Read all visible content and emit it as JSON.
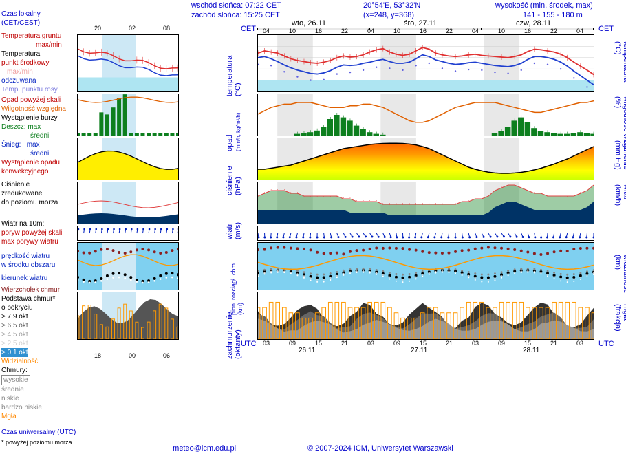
{
  "header": {
    "sunrise": "wschód słońca: 07:22 CET",
    "sunset": "zachód słońca: 15:25 CET",
    "coords": "20°54'E, 53°32'N",
    "xy": "(x=248, y=368)",
    "elevation_label": "wysokość (min, środek, max)",
    "elevation": "141 - 155 - 180 m"
  },
  "legend": {
    "czas_lokalny": "Czas lokalny",
    "czas_lokalny_sub": "(CET/CEST)",
    "temp_gruntu": "Temperatura gruntu",
    "maxmin": "max/min",
    "temperatura": "Temperatura:",
    "punkt_srodkowy": "punkt środkowy",
    "maxmin2": "max/min",
    "odczuwana": "odczuwana",
    "temp_rosy": "Temp. punktu rosy",
    "opad_skali": "Opad powyżej skali",
    "wilg_wzgl": "Wilgotność względna",
    "burza": "Wystąpienie burzy",
    "deszcz": "Deszcz:",
    "max": "max",
    "sredni": "średni",
    "snieg": "Śnieg:",
    "opad_konw": "Wystąpienie opadu",
    "opad_konw2": "konwekcyjnego",
    "cisnienie": "Ciśnienie",
    "zredukowane": "zredukowane",
    "do_poziomu": "do poziomu morza",
    "wiatr10m": "Wiatr na 10m:",
    "poryw_skali": "poryw powyżej skali",
    "max_porywy": "max porywy wiatru",
    "predkosc": "prędkość wiatru",
    "srodek_obszaru": "w środku obszaru",
    "kierunek": "kierunek wiatru",
    "wierzch_chmur": "Wierzchołek chmur",
    "podstawa": "Podstawa chmur*",
    "pokrycie": "o pokryciu",
    "okt79": "> 7.9 okt",
    "okt65": "> 6.5 okt",
    "okt45": "> 4.5 okt",
    "okt25": "> 2.5 okt",
    "okt01": "> 0.1 okt",
    "widzialnosc": "Widzialność",
    "chmury": "Chmury:",
    "wysokie": "wysokie",
    "srednie": "średnie",
    "niskie": "niskie",
    "bardzo_niskie": "bardzo niskie",
    "mgla": "Mgła",
    "czas_utc": "Czas uniwersalny (UTC)",
    "asterisk": "* powyżej poziomu morza"
  },
  "xaxis": {
    "cet": "CET",
    "utc": "UTC",
    "days": [
      "wto, 26.11",
      "śro, 27.11",
      "czw, 28.11"
    ],
    "hours_top": [
      "04",
      "10",
      "16",
      "22",
      "04",
      "10",
      "16",
      "22",
      "04",
      "10",
      "16",
      "22",
      "04"
    ],
    "hours_bot": [
      "03",
      "09",
      "15",
      "21",
      "03",
      "09",
      "15",
      "21",
      "03",
      "09",
      "15",
      "21",
      "03"
    ],
    "dates_bot": [
      "26.11",
      "27.11",
      "28.11"
    ],
    "mini_top": [
      "20",
      "02",
      "08"
    ],
    "mini_bot": [
      "18",
      "00",
      "06"
    ]
  },
  "vlabels": {
    "temp": "temperatura",
    "temp_unit": "(°C)",
    "opad": "opad",
    "opad_unit": "(mm/h, kg/m²/h)",
    "cisnienie": "ciśnienie",
    "cisnienie_unit": "(hPa)",
    "wiatr": "wiatr",
    "wiatr_unit": "(m/s)",
    "chmur": "pion. rozciągł. chm.",
    "chmur_unit": "(km)",
    "zachmurzenie": "zachmurzenie",
    "zachmurzenie_unit": "(oktanty)",
    "wilg": "wilgotność wzgl.",
    "wilg_unit": "(%)",
    "cisn_r": "ciśnienie",
    "cisn_r_unit": "(mm Hg)",
    "wiatr_r": "wiatr",
    "wiatr_r_unit": "(km/h)",
    "widzialnosc": "widzialność",
    "widz_unit": "(km)",
    "mgla": "mgła",
    "mgla_unit": "(frakcja)"
  },
  "panels": {
    "temp": {
      "ylim": [
        -2,
        8
      ],
      "yticks": [
        -2,
        0,
        2,
        4,
        6
      ],
      "red": [
        4.8,
        5.2,
        5.0,
        4.8,
        4.3,
        3.8,
        3.5,
        3.3,
        3.1,
        3.0,
        3.2,
        3.5,
        4.0,
        4.3,
        4.1,
        4.2,
        4.5,
        5.0,
        5.4,
        5.6,
        5.0,
        4.6,
        4.4,
        4.6,
        5.2,
        5.8,
        5.5,
        4.8,
        4.5,
        4.3,
        4.2,
        4.3,
        4.5,
        4.6,
        4.4,
        4.3,
        4.2,
        4.1,
        4.0,
        4.2,
        4.5,
        5.1,
        5.5,
        5.4,
        5.2,
        5.0,
        4.6,
        4.0,
        3.2,
        2.5,
        1.8,
        1.0
      ],
      "blue": [
        4.0,
        4.2,
        3.8,
        3.3,
        2.7,
        2.2,
        1.8,
        1.5,
        1.2,
        1.1,
        1.3,
        1.7,
        2.3,
        2.7,
        2.6,
        2.7,
        3.0,
        3.2,
        3.5,
        3.7,
        3.3,
        3.0,
        3.0,
        3.2,
        3.8,
        4.5,
        4.2,
        3.6,
        3.3,
        3.0,
        2.8,
        2.9,
        3.1,
        3.2,
        3.0,
        2.8,
        2.6,
        2.5,
        2.4,
        2.6,
        3.0,
        3.7,
        4.2,
        4.2,
        4.0,
        3.7,
        3.2,
        2.5,
        1.6,
        0.8,
        0.0,
        -0.8
      ],
      "freeze_fill": "#aee5f2",
      "red_stroke": "#e03030",
      "blue_stroke": "#2040d0",
      "dots": "#6060e0"
    },
    "precip": {
      "ylim": [
        0,
        5
      ],
      "yticks": [
        1,
        2,
        3,
        4
      ],
      "rhlim": [
        75,
        100
      ],
      "rhticks": [
        75,
        80,
        85,
        90,
        95,
        100
      ],
      "bars": [
        0,
        0,
        0,
        0,
        0,
        0,
        0.2,
        0.3,
        0.4,
        0.6,
        1.0,
        2.0,
        2.5,
        2.2,
        1.8,
        1.2,
        0.8,
        0.4,
        0.2,
        0.1,
        0,
        0,
        0,
        0,
        0,
        0,
        0,
        0,
        0,
        0,
        0,
        0,
        0,
        0,
        0,
        0,
        0.3,
        0.5,
        1.0,
        1.8,
        2.2,
        1.6,
        0.9,
        0.5,
        0.4,
        0.3,
        0.2,
        0.2,
        0.3,
        0.4,
        0.3,
        0.2
      ],
      "bar_color": "#0d7f1e",
      "rh": [
        88,
        90,
        92,
        93,
        94,
        94,
        95,
        95,
        95,
        94,
        93,
        92,
        92,
        92,
        93,
        93,
        94,
        94,
        93,
        92,
        90,
        88,
        86,
        84,
        83,
        83,
        84,
        86,
        88,
        90,
        92,
        93,
        94,
        95,
        95,
        95,
        95,
        94,
        93,
        92,
        91,
        90,
        89,
        89,
        90,
        91,
        92,
        93,
        94,
        95,
        95,
        96
      ],
      "rh_stroke": "#e06000"
    },
    "pressure": {
      "ylim": [
        1005,
        1025
      ],
      "yticks": [
        1005,
        1010,
        1015,
        1020,
        1025
      ],
      "rlim": [
        754,
        769
      ],
      "rticks": [
        754,
        758,
        761,
        765,
        769
      ],
      "vals": [
        1010,
        1010,
        1010.5,
        1011,
        1011.5,
        1012,
        1013,
        1014,
        1015,
        1016,
        1017,
        1018,
        1019,
        1020,
        1020.5,
        1021,
        1021.5,
        1022,
        1022.3,
        1022.5,
        1022.6,
        1022.6,
        1022.5,
        1022.2,
        1021.8,
        1021,
        1020,
        1018.5,
        1017,
        1015.5,
        1014,
        1012.5,
        1011,
        1010,
        1009.2,
        1008.6,
        1008.2,
        1008,
        1008,
        1008.2,
        1008.5,
        1009,
        1009.7,
        1010.5,
        1011.5,
        1012.5,
        1013.8,
        1015,
        1016.5,
        1018,
        1019.5,
        1021
      ],
      "grad_stops": [
        [
          "0%",
          "#ccff00"
        ],
        [
          "25%",
          "#ffff00"
        ],
        [
          "50%",
          "#ffcc00"
        ],
        [
          "70%",
          "#ff9900"
        ],
        [
          "100%",
          "#ff6600"
        ]
      ]
    },
    "wind": {
      "ylim": [
        0,
        15
      ],
      "yticks": [
        5,
        10,
        15
      ],
      "rlim": [
        18,
        54
      ],
      "rticks": [
        18,
        36,
        54
      ],
      "speed": [
        5,
        5,
        5,
        5,
        5,
        5,
        5,
        5,
        5,
        5,
        5,
        5,
        5,
        5,
        4,
        4,
        4,
        4,
        4,
        4,
        3,
        3,
        3,
        3,
        3,
        3,
        3,
        3,
        3,
        3,
        3,
        3,
        3,
        3,
        3,
        4,
        6,
        7,
        8,
        8,
        7,
        6,
        5,
        5,
        5,
        5,
        5,
        5,
        5,
        5,
        6,
        8
      ],
      "gust": [
        10,
        11,
        12,
        12,
        12,
        11,
        11,
        10,
        10,
        10,
        10,
        10,
        10,
        9,
        9,
        8,
        8,
        8,
        8,
        7,
        7,
        7,
        7,
        7,
        7,
        7,
        7,
        7,
        7,
        7,
        7,
        8,
        8,
        9,
        9,
        10,
        12,
        13,
        14,
        14,
        13,
        12,
        11,
        11,
        10,
        10,
        10,
        10,
        10,
        11,
        12,
        14
      ],
      "fill_hi": "#0d7f1e",
      "fill_lo": "#003366",
      "gust_stroke": "#e04040"
    },
    "clouds": {
      "bg": "#7fd0f0",
      "yticks_l": [
        "15.0",
        "7.0",
        "2.0",
        "0.5",
        "0.1"
      ],
      "yticks_r": [
        1,
        10,
        100
      ],
      "top_dots": "#8b2020",
      "base_dots": "#000",
      "vis_line": "#ff9900"
    },
    "sky": {
      "ylim": [
        0,
        8
      ],
      "yticks": [
        0,
        4,
        8
      ],
      "rlim": [
        0,
        1
      ],
      "rticks": [
        "0",
        "0.25",
        "0.5",
        "0.75",
        "1"
      ],
      "okt": [
        6,
        6,
        7,
        7,
        6,
        5,
        5,
        4,
        4,
        5,
        6,
        7,
        7,
        7,
        6,
        6,
        6,
        7,
        7,
        7,
        6,
        5,
        4,
        4,
        4,
        5,
        6,
        6,
        5,
        5,
        5,
        6,
        7,
        7,
        7,
        6,
        6,
        7,
        7,
        7,
        7,
        6,
        6,
        6,
        6,
        7,
        7,
        7,
        7,
        6,
        6,
        5
      ]
    }
  },
  "colors": {
    "red": "#c00000",
    "green": "#0d7f1e",
    "blue": "#0020c0",
    "orange": "#ff8800",
    "purple": "#8040c0",
    "darkblue": "#003366",
    "gray": "#888",
    "black": "#000"
  },
  "footer": {
    "email": "meteo@icm.edu.pl",
    "copyright": "© 2007-2024 ICM, Uniwersytet Warszawski"
  }
}
